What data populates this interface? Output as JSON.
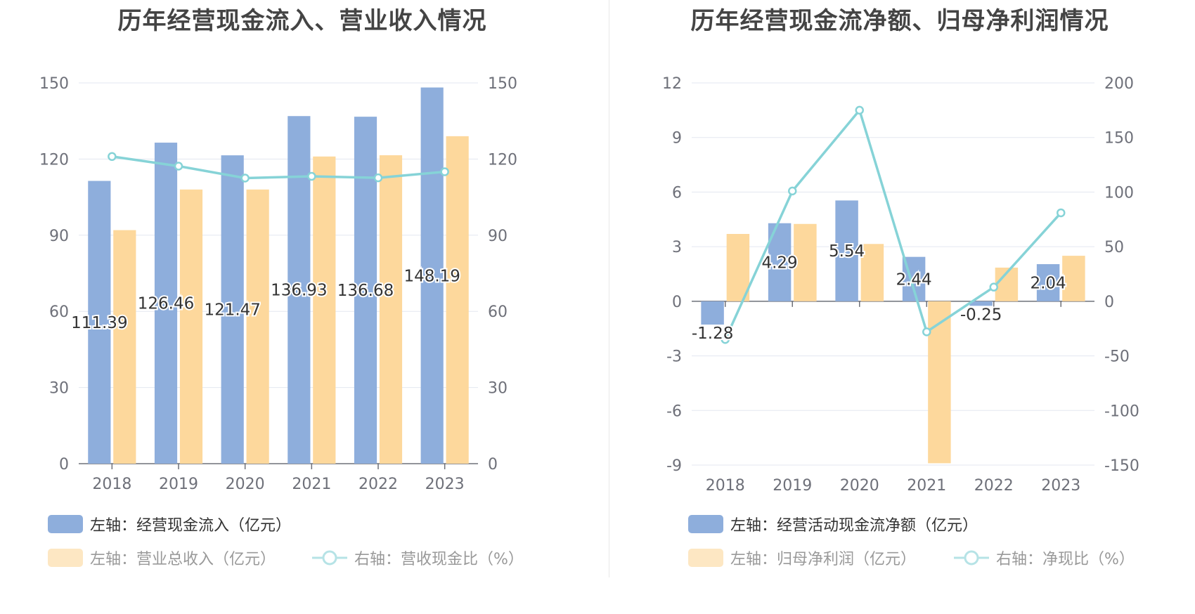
{
  "chart_data": [
    {
      "type": "bar",
      "title": "历年经营现金流入、营业收入情况",
      "categories": [
        "2018",
        "2019",
        "2020",
        "2021",
        "2022",
        "2023"
      ],
      "left_axis": {
        "min": 0,
        "max": 150,
        "ticks": [
          "0",
          "30",
          "60",
          "90",
          "120",
          "150"
        ]
      },
      "right_axis": {
        "min": 0,
        "max": 150,
        "ticks": [
          "0",
          "30",
          "60",
          "90",
          "120",
          "150"
        ]
      },
      "series": [
        {
          "name": "左轴：经营现金流入（亿元）",
          "kind": "bar",
          "axis": "left",
          "color": "#8eaedc",
          "values": [
            111.39,
            126.46,
            121.47,
            136.93,
            136.68,
            148.19
          ],
          "labels": [
            "111.39",
            "126.46",
            "121.47",
            "136.93",
            "136.68",
            "148.19"
          ]
        },
        {
          "name": "左轴：营业总收入（亿元）",
          "kind": "bar",
          "axis": "left",
          "color": "#fdd89c",
          "values": [
            92,
            108,
            108,
            121,
            121.5,
            129
          ]
        },
        {
          "name": "右轴：营收现金比（%）",
          "kind": "line",
          "axis": "right",
          "color": "#86d3d7",
          "values": [
            121,
            117.2,
            112.5,
            113.2,
            112.6,
            115
          ]
        }
      ],
      "legend_inactive": [
        false,
        true,
        true
      ]
    },
    {
      "type": "bar",
      "title": "历年经营现金流净额、归母净利润情况",
      "categories": [
        "2018",
        "2019",
        "2020",
        "2021",
        "2022",
        "2023"
      ],
      "left_axis": {
        "min": -9,
        "max": 12,
        "ticks": [
          "-9",
          "-6",
          "-3",
          "0",
          "3",
          "6",
          "9",
          "12"
        ]
      },
      "right_axis": {
        "min": -150,
        "max": 200,
        "ticks": [
          "-150",
          "-100",
          "-50",
          "0",
          "50",
          "100",
          "150",
          "200"
        ]
      },
      "series": [
        {
          "name": "左轴：经营活动现金流净额（亿元）",
          "kind": "bar",
          "axis": "left",
          "color": "#8eaedc",
          "values": [
            -1.28,
            4.29,
            5.54,
            2.44,
            -0.25,
            2.04
          ],
          "labels": [
            "-1.28",
            "4.29",
            "5.54",
            "2.44",
            "-0.25",
            "2.04"
          ]
        },
        {
          "name": "左轴：归母净利润（亿元）",
          "kind": "bar",
          "axis": "left",
          "color": "#fdd89c",
          "values": [
            3.7,
            4.25,
            3.15,
            -8.9,
            1.85,
            2.5
          ]
        },
        {
          "name": "右轴：净现比（%）",
          "kind": "line",
          "axis": "right",
          "color": "#86d3d7",
          "values": [
            -35,
            101,
            175,
            -28,
            13,
            81
          ]
        }
      ],
      "legend_inactive": [
        false,
        true,
        true
      ]
    }
  ]
}
